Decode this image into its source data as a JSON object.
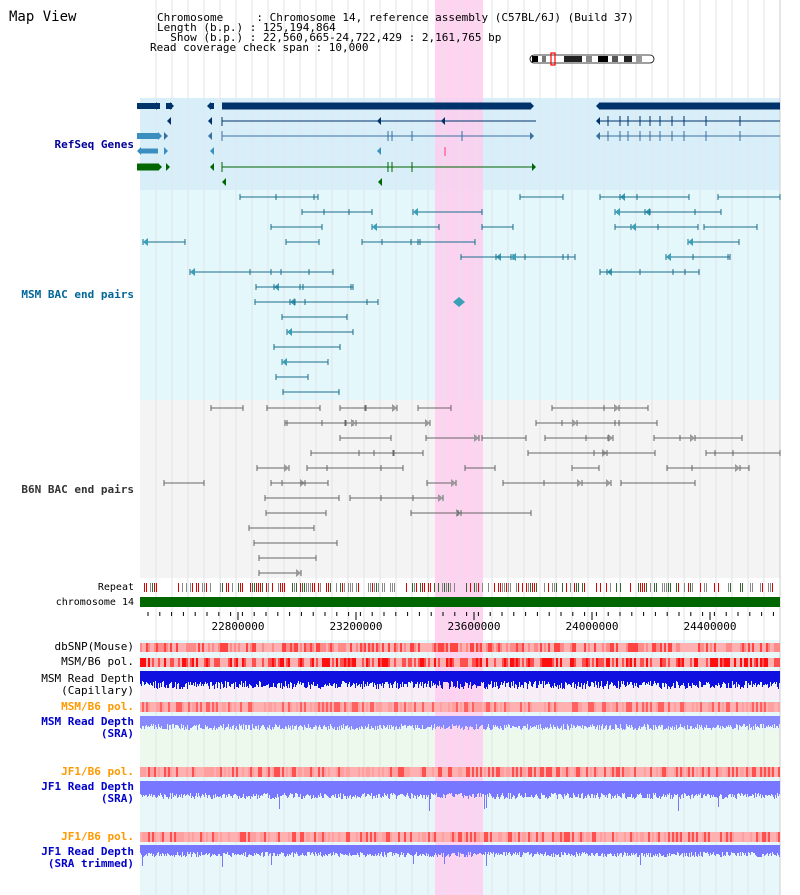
{
  "app_title": "Map View",
  "info": {
    "lines": [
      "Chromosome     : Chromosome 14, reference assembly (C57BL/6J) (Build 37)",
      "Length (b.p.) : 125,194,864",
      "  Show (b.p.) : 22,560,665-24,722,429 : 2,161,765 bp",
      "Read coverage check span : 10,000"
    ]
  },
  "tracks": {
    "refseq": {
      "label": "RefSeq Genes",
      "color": "#000099"
    },
    "msm_bac": {
      "label": "MSM BAC end pairs",
      "color": "#006699"
    },
    "b6n_bac": {
      "label": "B6N BAC end pairs",
      "color": "#333333"
    },
    "repeat": {
      "label": "Repeat"
    },
    "chromosome": {
      "label": "chromosome 14"
    },
    "dbsnp": {
      "label": "dbSNP(Mouse)"
    },
    "msm_b6_pol": {
      "label": "MSM/B6 pol."
    },
    "msm_depth_cap": {
      "label": "MSM Read Depth\n(Capillary)"
    },
    "msm_b6_pol2": {
      "label": "MSM/B6 pol.",
      "color": "#ff9900"
    },
    "msm_depth_sra": {
      "label": "MSM Read Depth\n(SRA)",
      "color": "#0000cc"
    },
    "jf1_b6_pol": {
      "label": "JF1/B6 pol.",
      "color": "#ff9900"
    },
    "jf1_depth_sra": {
      "label": "JF1 Read Depth\n(SRA)",
      "color": "#0000cc"
    },
    "jf1_b6_pol2": {
      "label": "JF1/B6 pol.",
      "color": "#ff9900"
    },
    "jf1_depth_trim": {
      "label": "JF1 Read Depth\n(SRA trimmed)",
      "color": "#0000cc"
    }
  },
  "ruler": {
    "ticks": [
      "22800000",
      "23200000",
      "23600000",
      "24000000",
      "24400000"
    ]
  },
  "colors": {
    "highlight": "#ffccee",
    "refseq_bg": "#d8effa",
    "msm_bg": "#e4f7fa",
    "b6n_bg": "#f4f4f4",
    "gene_dark": "#00336a",
    "gene_green": "#006600",
    "gene_light": "#3b8fc0"
  }
}
